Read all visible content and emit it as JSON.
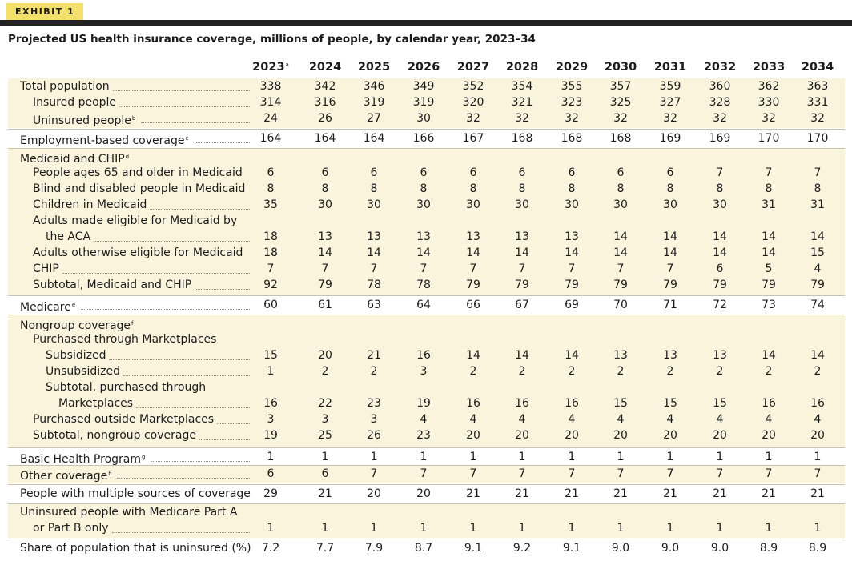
{
  "exhibit_label": "EXHIBIT 1",
  "caption": "Projected US health insurance coverage, millions of people, by calendar year, 2023–34",
  "columns": [
    {
      "label": "2023",
      "note": "a"
    },
    {
      "label": "2024",
      "note": ""
    },
    {
      "label": "2025",
      "note": ""
    },
    {
      "label": "2026",
      "note": ""
    },
    {
      "label": "2027",
      "note": ""
    },
    {
      "label": "2028",
      "note": ""
    },
    {
      "label": "2029",
      "note": ""
    },
    {
      "label": "2030",
      "note": ""
    },
    {
      "label": "2031",
      "note": ""
    },
    {
      "label": "2032",
      "note": ""
    },
    {
      "label": "2033",
      "note": ""
    },
    {
      "label": "2034",
      "note": ""
    }
  ],
  "groups": [
    {
      "rows": [
        {
          "lines": [
            "Total population"
          ],
          "note": "",
          "indent": 0,
          "values": [
            "338",
            "342",
            "346",
            "349",
            "352",
            "354",
            "355",
            "357",
            "359",
            "360",
            "362",
            "363"
          ]
        },
        {
          "lines": [
            "Insured people"
          ],
          "note": "",
          "indent": 1,
          "values": [
            "314",
            "316",
            "319",
            "319",
            "320",
            "321",
            "323",
            "325",
            "327",
            "328",
            "330",
            "331"
          ]
        },
        {
          "lines": [
            "Uninsured people"
          ],
          "note": "b",
          "indent": 1,
          "values": [
            "24",
            "26",
            "27",
            "30",
            "32",
            "32",
            "32",
            "32",
            "32",
            "32",
            "32",
            "32"
          ]
        }
      ]
    },
    {
      "rows": [
        {
          "lines": [
            "Employment-based coverage"
          ],
          "note": "c",
          "indent": 0,
          "values": [
            "164",
            "164",
            "164",
            "166",
            "167",
            "168",
            "168",
            "168",
            "169",
            "169",
            "170",
            "170"
          ]
        }
      ]
    },
    {
      "rows": [
        {
          "lines": [
            "Medicaid and CHIP"
          ],
          "note": "d",
          "indent": 0,
          "values": []
        },
        {
          "lines": [
            "People ages 65 and older in Medicaid"
          ],
          "note": "",
          "indent": 1,
          "values": [
            "6",
            "6",
            "6",
            "6",
            "6",
            "6",
            "6",
            "6",
            "6",
            "7",
            "7",
            "7"
          ]
        },
        {
          "lines": [
            "Blind and disabled people in Medicaid"
          ],
          "note": "",
          "indent": 1,
          "values": [
            "8",
            "8",
            "8",
            "8",
            "8",
            "8",
            "8",
            "8",
            "8",
            "8",
            "8",
            "8"
          ]
        },
        {
          "lines": [
            "Children in Medicaid"
          ],
          "note": "",
          "indent": 1,
          "values": [
            "35",
            "30",
            "30",
            "30",
            "30",
            "30",
            "30",
            "30",
            "30",
            "30",
            "31",
            "31"
          ]
        },
        {
          "lines": [
            "Adults made eligible for Medicaid by",
            "the ACA"
          ],
          "note": "",
          "indent": 1,
          "values": [
            "18",
            "13",
            "13",
            "13",
            "13",
            "13",
            "13",
            "14",
            "14",
            "14",
            "14",
            "14"
          ]
        },
        {
          "lines": [
            "Adults otherwise eligible for Medicaid"
          ],
          "note": "",
          "indent": 1,
          "values": [
            "18",
            "14",
            "14",
            "14",
            "14",
            "14",
            "14",
            "14",
            "14",
            "14",
            "14",
            "15"
          ]
        },
        {
          "lines": [
            "CHIP"
          ],
          "note": "",
          "indent": 1,
          "values": [
            "7",
            "7",
            "7",
            "7",
            "7",
            "7",
            "7",
            "7",
            "7",
            "6",
            "5",
            "4"
          ]
        },
        {
          "lines": [
            "Subtotal, Medicaid and CHIP"
          ],
          "note": "",
          "indent": 1,
          "values": [
            "92",
            "79",
            "78",
            "78",
            "79",
            "79",
            "79",
            "79",
            "79",
            "79",
            "79",
            "79"
          ]
        }
      ]
    },
    {
      "rows": [
        {
          "lines": [
            "Medicare"
          ],
          "note": "e",
          "indent": 0,
          "values": [
            "60",
            "61",
            "63",
            "64",
            "66",
            "67",
            "69",
            "70",
            "71",
            "72",
            "73",
            "74"
          ]
        }
      ]
    },
    {
      "rows": [
        {
          "lines": [
            "Nongroup coverage"
          ],
          "note": "f",
          "indent": 0,
          "values": []
        },
        {
          "lines": [
            "Purchased through Marketplaces"
          ],
          "note": "",
          "indent": 1,
          "values": []
        },
        {
          "lines": [
            "Subsidized"
          ],
          "note": "",
          "indent": 2,
          "values": [
            "15",
            "20",
            "21",
            "16",
            "14",
            "14",
            "14",
            "13",
            "13",
            "13",
            "14",
            "14"
          ]
        },
        {
          "lines": [
            "Unsubsidized"
          ],
          "note": "",
          "indent": 2,
          "values": [
            "1",
            "2",
            "2",
            "3",
            "2",
            "2",
            "2",
            "2",
            "2",
            "2",
            "2",
            "2"
          ]
        },
        {
          "lines": [
            "Subtotal, purchased through",
            "Marketplaces"
          ],
          "note": "",
          "indent": 2,
          "values": [
            "16",
            "22",
            "23",
            "19",
            "16",
            "16",
            "16",
            "15",
            "15",
            "15",
            "16",
            "16"
          ]
        },
        {
          "lines": [
            "Purchased outside Marketplaces"
          ],
          "note": "",
          "indent": 1,
          "values": [
            "3",
            "3",
            "3",
            "4",
            "4",
            "4",
            "4",
            "4",
            "4",
            "4",
            "4",
            "4"
          ]
        },
        {
          "lines": [
            "Subtotal, nongroup coverage"
          ],
          "note": "",
          "indent": 1,
          "values": [
            "19",
            "25",
            "26",
            "23",
            "20",
            "20",
            "20",
            "20",
            "20",
            "20",
            "20",
            "20"
          ]
        }
      ]
    },
    {
      "rows": [
        {
          "lines": [
            "Basic Health Program"
          ],
          "note": "g",
          "indent": 0,
          "values": [
            "1",
            "1",
            "1",
            "1",
            "1",
            "1",
            "1",
            "1",
            "1",
            "1",
            "1",
            "1"
          ]
        }
      ]
    },
    {
      "rows": [
        {
          "lines": [
            "Other coverage"
          ],
          "note": "h",
          "indent": 0,
          "values": [
            "6",
            "6",
            "7",
            "7",
            "7",
            "7",
            "7",
            "7",
            "7",
            "7",
            "7",
            "7"
          ]
        }
      ]
    },
    {
      "rows": [
        {
          "lines": [
            "People with multiple sources of coverage"
          ],
          "note": "",
          "indent": 0,
          "values": [
            "29",
            "21",
            "20",
            "20",
            "21",
            "21",
            "21",
            "21",
            "21",
            "21",
            "21",
            "21"
          ]
        }
      ]
    },
    {
      "rows": [
        {
          "lines": [
            "Uninsured people with Medicare Part A",
            "or Part B only"
          ],
          "note": "",
          "indent": 0,
          "values": [
            "1",
            "1",
            "1",
            "1",
            "1",
            "1",
            "1",
            "1",
            "1",
            "1",
            "1",
            "1"
          ]
        }
      ]
    },
    {
      "rows": [
        {
          "lines": [
            "Share of population that is uninsured (%)"
          ],
          "note": "",
          "indent": 0,
          "values": [
            "7.2",
            "7.7",
            "7.9",
            "8.7",
            "9.1",
            "9.2",
            "9.1",
            "9.0",
            "9.0",
            "9.0",
            "8.9",
            "8.9"
          ]
        }
      ]
    }
  ]
}
